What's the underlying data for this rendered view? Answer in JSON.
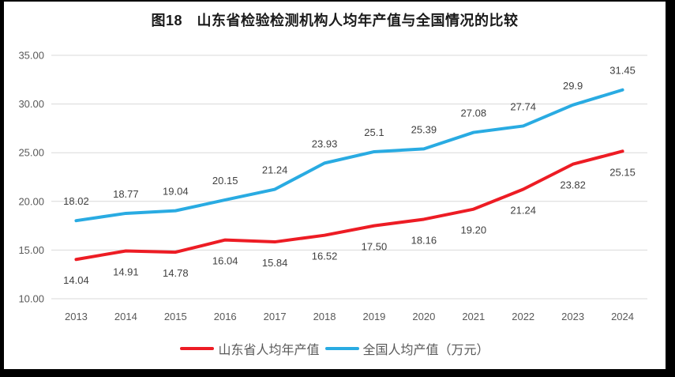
{
  "title": "图18　山东省检验检测机构人均年产值与全国情况的比较",
  "legend": [
    {
      "label": "山东省人均年产值",
      "color": "#ED1C24"
    },
    {
      "label": "全国人均产值（万元）",
      "color": "#29ABE2"
    }
  ],
  "chart_data": {
    "type": "line",
    "title": "图18　山东省检验检测机构人均年产值与全国情况的比较",
    "categories": [
      "2013",
      "2014",
      "2015",
      "2016",
      "2017",
      "2018",
      "2019",
      "2020",
      "2021",
      "2022",
      "2023",
      "2024"
    ],
    "series": [
      {
        "name": "山东省人均年产值",
        "color": "#ED1C24",
        "values": [
          14.04,
          14.91,
          14.78,
          16.04,
          15.84,
          16.52,
          17.5,
          18.16,
          19.2,
          21.24,
          23.82,
          25.15
        ],
        "labels": [
          "14.04",
          "14.91",
          "14.78",
          "16.04",
          "15.84",
          "16.52",
          "17.50",
          "18.16",
          "19.20",
          "21.24",
          "23.82",
          "25.15"
        ],
        "label_position": "below"
      },
      {
        "name": "全国人均产值（万元）",
        "color": "#29ABE2",
        "values": [
          18.02,
          18.77,
          19.04,
          20.15,
          21.24,
          23.93,
          25.1,
          25.39,
          27.08,
          27.74,
          29.9,
          31.45
        ],
        "labels": [
          "18.02",
          "18.77",
          "19.04",
          "20.15",
          "21.24",
          "23.93",
          "25.1",
          "25.39",
          "27.08",
          "27.74",
          "29.9",
          "31.45"
        ],
        "label_position": "above"
      }
    ],
    "ylim": [
      10,
      35
    ],
    "y_ticks": [
      "35.00",
      "30.00",
      "25.00",
      "20.00",
      "15.00",
      "10.00"
    ],
    "grid": true,
    "legend_position": "bottom",
    "colors": {
      "gridline": "#D9D9D9",
      "axis_text": "#595959",
      "data_label_text": "#404040",
      "title_text": "#1a1a1a",
      "frame_border": "#000000",
      "background": "#FFFFFF"
    }
  }
}
